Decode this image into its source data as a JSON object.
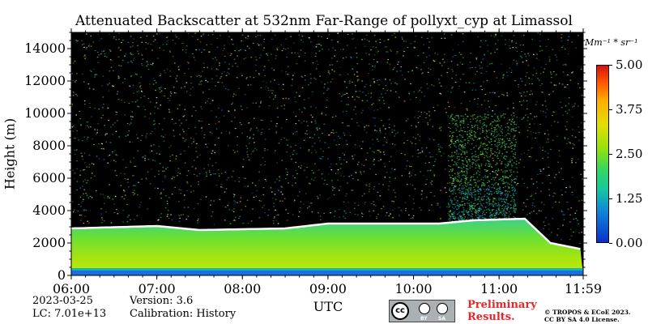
{
  "chart_data": {
    "type": "heatmap",
    "title": "Attenuated Backscatter at 532nm Far-Range of pollyxt_cyp at Limassol",
    "xlabel": "UTC",
    "ylabel": "Height (m)",
    "x_ticks": [
      "06:00",
      "07:00",
      "08:00",
      "09:00",
      "10:00",
      "11:00",
      "11:59"
    ],
    "x_tick_values_hours": [
      6.0,
      7.0,
      8.0,
      9.0,
      10.0,
      11.0,
      11.983
    ],
    "xlim_hours": [
      6.0,
      11.983
    ],
    "y_ticks": [
      0,
      2000,
      4000,
      6000,
      8000,
      10000,
      12000,
      14000
    ],
    "ylim": [
      0,
      15000
    ],
    "colorbar": {
      "unit": "Mm⁻¹ * sr⁻¹",
      "ticks": [
        "0.00",
        "1.25",
        "2.50",
        "3.75",
        "5.00"
      ],
      "range": [
        0,
        5
      ],
      "colors": [
        "#0a2fc8",
        "#0f8ad8",
        "#14c8a0",
        "#38d85a",
        "#8ee010",
        "#e0e000",
        "#ffae00",
        "#ff5a00",
        "#d81010"
      ]
    },
    "features": {
      "background_color": "#000000",
      "boundary_layer_top_m": [
        {
          "time": 6.0,
          "height": 2900
        },
        {
          "time": 7.0,
          "height": 3050
        },
        {
          "time": 7.5,
          "height": 2800
        },
        {
          "time": 8.5,
          "height": 2900
        },
        {
          "time": 9.0,
          "height": 3200
        },
        {
          "time": 10.3,
          "height": 3200
        },
        {
          "time": 10.7,
          "height": 3400
        },
        {
          "time": 11.3,
          "height": 3500
        },
        {
          "time": 11.6,
          "height": 2000
        },
        {
          "time": 11.983,
          "height": 1600
        }
      ],
      "aerosol_plume": {
        "time_start": 10.4,
        "time_end": 11.2,
        "height_top": 10000
      }
    }
  },
  "footer": {
    "date": "2023-03-25",
    "lc": "LC: 7.01e+13",
    "version": "Version: 3.6",
    "calibration": "Calibration: History",
    "xlabel": "UTC",
    "license_badge": {
      "cc": "cc",
      "by": "BY",
      "sa": "SA"
    },
    "preliminary_line1": "Preliminary",
    "preliminary_line2": "Results.",
    "copyright_line1": "© TROPOS & ECoE 2023.",
    "copyright_line2": "CC BY SA 4.0 License."
  }
}
